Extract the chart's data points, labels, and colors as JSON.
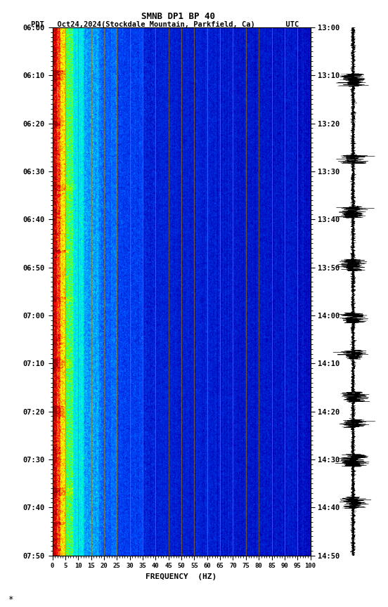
{
  "title_line1": "SMNB DP1 BP 40",
  "title_line2": "PDT   Oct24,2024(Stockdale Mountain, Parkfield, Ca)       UTC",
  "xlabel": "FREQUENCY  (HZ)",
  "freq_ticks": [
    0,
    5,
    10,
    15,
    20,
    25,
    30,
    35,
    40,
    45,
    50,
    55,
    60,
    65,
    70,
    75,
    80,
    85,
    90,
    95,
    100
  ],
  "left_time_labels": [
    "06:00",
    "06:10",
    "06:20",
    "06:30",
    "06:40",
    "06:50",
    "07:00",
    "07:10",
    "07:20",
    "07:30",
    "07:40",
    "07:50"
  ],
  "right_time_labels": [
    "13:00",
    "13:10",
    "13:20",
    "13:30",
    "13:40",
    "13:50",
    "14:00",
    "14:10",
    "14:20",
    "14:30",
    "14:40",
    "14:50"
  ],
  "freq_min": 0,
  "freq_max": 100,
  "vertical_line_freqs": [
    5,
    10,
    15,
    20,
    25,
    30,
    35,
    40,
    45,
    50,
    55,
    60,
    65,
    70,
    75,
    80,
    85,
    90,
    95
  ],
  "fig_width": 5.52,
  "fig_height": 8.64,
  "dpi": 100,
  "colormap_nodes": [
    [
      0.0,
      [
        0.0,
        0.0,
        0.35
      ]
    ],
    [
      0.15,
      [
        0.0,
        0.0,
        0.7
      ]
    ],
    [
      0.3,
      [
        0.0,
        0.3,
        1.0
      ]
    ],
    [
      0.45,
      [
        0.0,
        0.8,
        1.0
      ]
    ],
    [
      0.55,
      [
        0.0,
        1.0,
        0.8
      ]
    ],
    [
      0.65,
      [
        0.5,
        1.0,
        0.0
      ]
    ],
    [
      0.75,
      [
        1.0,
        1.0,
        0.0
      ]
    ],
    [
      0.85,
      [
        1.0,
        0.5,
        0.0
      ]
    ],
    [
      0.93,
      [
        1.0,
        0.0,
        0.0
      ]
    ],
    [
      1.0,
      [
        0.55,
        0.0,
        0.0
      ]
    ]
  ]
}
